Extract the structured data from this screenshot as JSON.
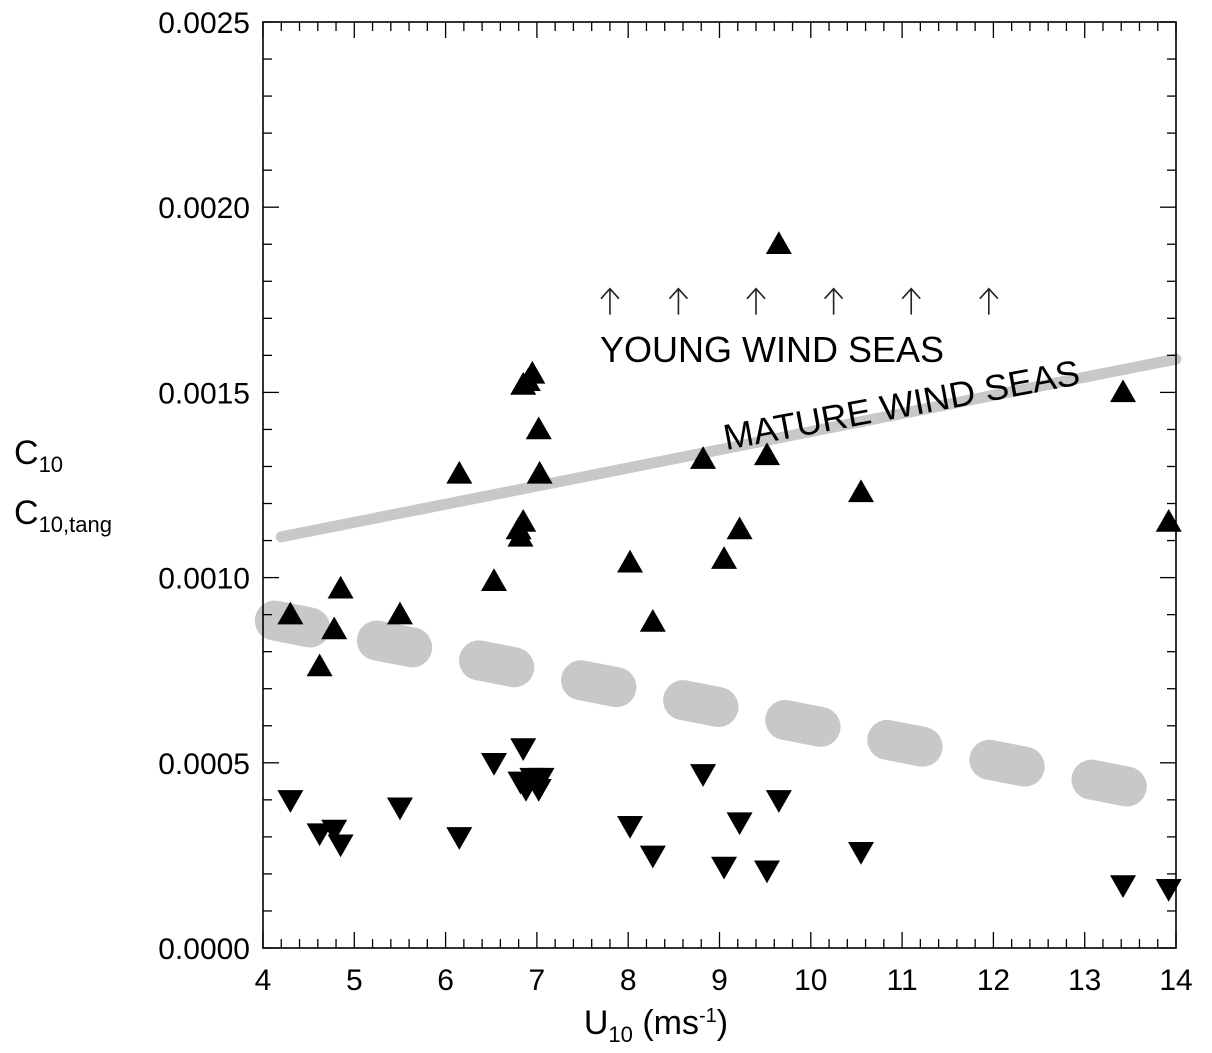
{
  "chart_data": {
    "type": "scatter",
    "xlabel": {
      "main": "U",
      "sub": "10",
      "unit_pre": " (ms",
      "unit_sup": "-1",
      "unit_post": ")"
    },
    "ylabel": [
      {
        "main": "C",
        "sub": "10"
      },
      {
        "main": "C",
        "sub": "10,tang"
      }
    ],
    "xlim": [
      4,
      14
    ],
    "ylim": [
      0.0,
      0.0025
    ],
    "x_ticks": [
      "4",
      "5",
      "6",
      "7",
      "8",
      "9",
      "10",
      "11",
      "12",
      "13",
      "14"
    ],
    "y_ticks": [
      "0.0000",
      "0.0005",
      "0.0010",
      "0.0015",
      "0.0020",
      "0.0025"
    ],
    "grid": false,
    "colors": {
      "marker": "#000000",
      "band": "#c8c8c8",
      "arrow": "#222222"
    },
    "annotations": {
      "young": "YOUNG WIND SEAS",
      "mature": "MATURE WIND SEAS",
      "arrows_x": [
        7.8,
        8.55,
        9.4,
        10.25,
        11.1,
        11.95
      ],
      "arrows_y": [
        0.00171,
        0.00178
      ]
    },
    "lines": {
      "solid": {
        "x": [
          4.2,
          14
        ],
        "y": [
          0.00111,
          0.00159
        ]
      },
      "dashed": {
        "x": [
          4,
          14
        ],
        "y": [
          0.00089,
          0.00041
        ]
      }
    },
    "series": [
      {
        "marker": "triangle-up",
        "points": [
          [
            4.3,
            0.0009
          ],
          [
            4.62,
            0.00076
          ],
          [
            4.78,
            0.00086
          ],
          [
            4.85,
            0.00097
          ],
          [
            5.5,
            0.0009
          ],
          [
            6.15,
            0.00128
          ],
          [
            6.53,
            0.00099
          ],
          [
            6.8,
            0.00113
          ],
          [
            6.82,
            0.00111
          ],
          [
            6.85,
            0.00115
          ],
          [
            6.85,
            0.00152
          ],
          [
            6.9,
            0.00153
          ],
          [
            6.95,
            0.00155
          ],
          [
            7.02,
            0.0014
          ],
          [
            7.03,
            0.00128
          ],
          [
            8.02,
            0.00104
          ],
          [
            8.27,
            0.00088
          ],
          [
            8.82,
            0.00132
          ],
          [
            9.05,
            0.00105
          ],
          [
            9.22,
            0.00113
          ],
          [
            9.52,
            0.00133
          ],
          [
            9.65,
            0.0019
          ],
          [
            10.55,
            0.00123
          ],
          [
            13.42,
            0.0015
          ],
          [
            13.92,
            0.00115
          ]
        ]
      },
      {
        "marker": "triangle-down",
        "points": [
          [
            4.3,
            0.0004
          ],
          [
            4.62,
            0.00031
          ],
          [
            4.78,
            0.00032
          ],
          [
            4.85,
            0.00028
          ],
          [
            5.5,
            0.00038
          ],
          [
            6.15,
            0.0003
          ],
          [
            6.53,
            0.0005
          ],
          [
            6.85,
            0.00054
          ],
          [
            6.82,
            0.00045
          ],
          [
            6.88,
            0.00043
          ],
          [
            6.95,
            0.00046
          ],
          [
            7.02,
            0.00043
          ],
          [
            7.05,
            0.00046
          ],
          [
            8.02,
            0.00033
          ],
          [
            8.27,
            0.00025
          ],
          [
            8.82,
            0.00047
          ],
          [
            9.05,
            0.00022
          ],
          [
            9.22,
            0.00034
          ],
          [
            9.52,
            0.00021
          ],
          [
            9.65,
            0.0004
          ],
          [
            10.55,
            0.00026
          ],
          [
            13.42,
            0.00017
          ],
          [
            13.92,
            0.00016
          ]
        ]
      }
    ]
  }
}
